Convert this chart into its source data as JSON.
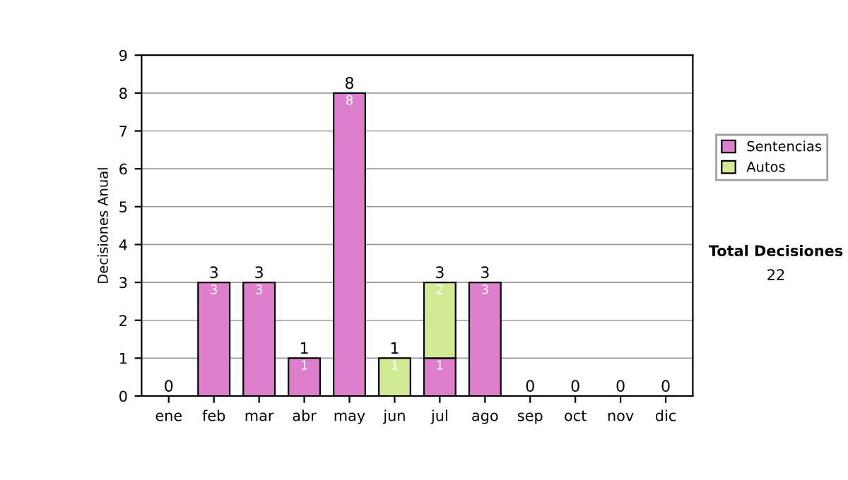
{
  "chart_data": {
    "type": "bar",
    "ylabel": "Decisiones Anual",
    "categories": [
      "ene",
      "feb",
      "mar",
      "abr",
      "may",
      "jun",
      "jul",
      "ago",
      "sep",
      "oct",
      "nov",
      "dic"
    ],
    "stacked": true,
    "series": [
      {
        "name": "Sentencias",
        "color": "#dd7fcd",
        "values": [
          0,
          3,
          3,
          1,
          8,
          0,
          1,
          3,
          0,
          0,
          0,
          0
        ],
        "value_labels": [
          null,
          "3",
          "3",
          "1",
          "8",
          null,
          "1",
          "3",
          null,
          null,
          null,
          null
        ]
      },
      {
        "name": "Autos",
        "color": "#d3ea95",
        "values": [
          0,
          0,
          0,
          0,
          0,
          1,
          2,
          0,
          0,
          0,
          0,
          0
        ],
        "value_labels": [
          null,
          null,
          null,
          null,
          null,
          "1",
          "2",
          null,
          null,
          null,
          null,
          null
        ]
      }
    ],
    "totals": [
      "0",
      "3",
      "3",
      "1",
      "8",
      "1",
      "3",
      "3",
      "0",
      "0",
      "0",
      "0"
    ],
    "ylim": [
      0,
      9
    ],
    "yticks": [
      0,
      1,
      2,
      3,
      4,
      5,
      6,
      7,
      8,
      9
    ],
    "grid": "y",
    "legend": "right",
    "annotations": [
      "Total Decisiones",
      "22"
    ]
  }
}
